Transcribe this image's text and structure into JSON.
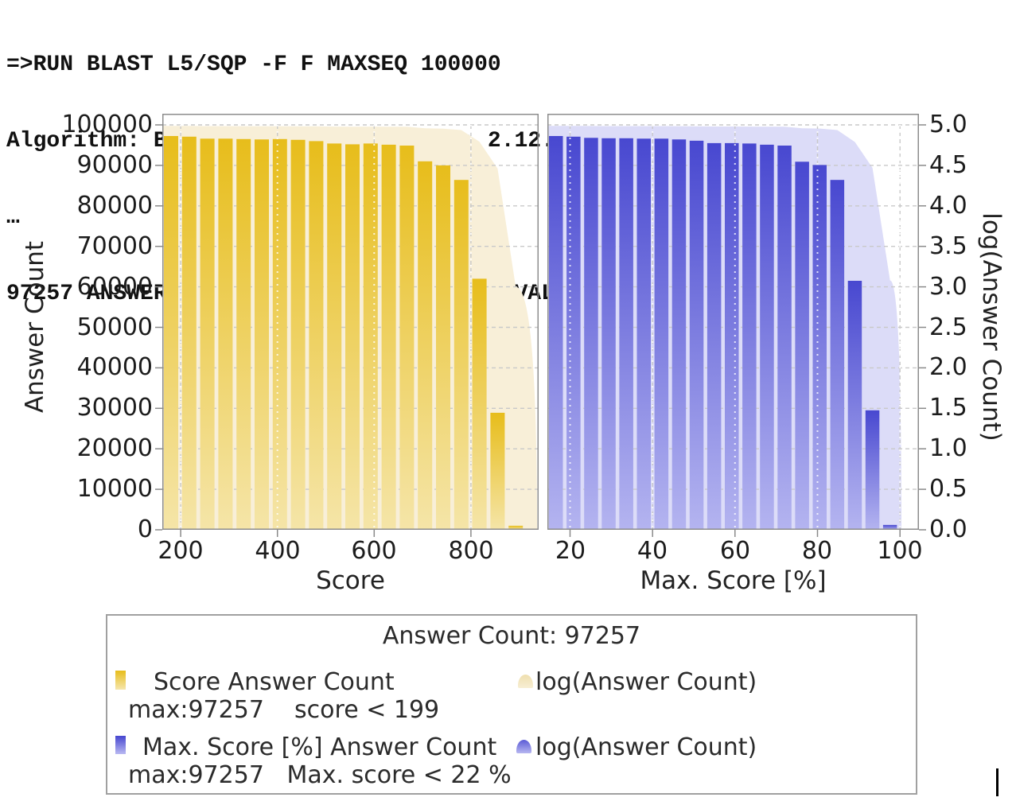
{
  "terminal": {
    "lines": [
      "=>RUN BLAST L5/SQP -F F MAXSEQ 100000",
      "Algorithm: BLAST - BLASTP. Version: 2.12.0+",
      "…",
      "97257 ANSWERS FOUND BELOW EXPECTATION VALUE OF: 10.0"
    ]
  },
  "chart_data": [
    {
      "type": "bar",
      "name": "score-answer-count-histogram",
      "title": "",
      "xlabel": "Score",
      "ylabel": "Answer Count",
      "xlim": [
        162,
        940
      ],
      "ylim": [
        0,
        100000
      ],
      "x_ticks": [
        200,
        400,
        600,
        800
      ],
      "y_ticks": [
        0,
        10000,
        20000,
        30000,
        40000,
        50000,
        60000,
        70000,
        80000,
        90000,
        100000
      ],
      "grid": true,
      "x": [
        180,
        219,
        257,
        296,
        335,
        374,
        412,
        451,
        490,
        528,
        567,
        606,
        644,
        683,
        722,
        760,
        799,
        838,
        876,
        915
      ],
      "values": [
        97257,
        97100,
        96600,
        96600,
        96500,
        96400,
        96500,
        96300,
        96000,
        95400,
        95200,
        95400,
        95100,
        94900,
        91000,
        90000,
        86400,
        62000,
        28900,
        1000
      ],
      "overlay_series": {
        "name": "log(Answer Count)",
        "style": "pale filled area",
        "axis_range": [
          0,
          5
        ],
        "note": "area height = log10(Answer Count) on secondary 0-5 axis"
      },
      "colors": {
        "bar_top": "#e7bd1b",
        "bar_bottom": "#f5e5a8",
        "area": "#f8efd8"
      }
    },
    {
      "type": "bar",
      "name": "max-score-percent-histogram",
      "title": "",
      "xlabel": "Max. Score [%]",
      "y2label": "log(Answer Count)",
      "xlim": [
        14.5,
        104.6
      ],
      "ylim": [
        0,
        100000
      ],
      "y2lim": [
        0.0,
        5.0
      ],
      "x_ticks": [
        20,
        40,
        60,
        80,
        100
      ],
      "y2_ticks": [
        "0.0",
        "0.5",
        "1.0",
        "1.5",
        "2.0",
        "2.5",
        "3.0",
        "3.5",
        "4.0",
        "4.5",
        "5.0"
      ],
      "grid": true,
      "x": [
        20,
        24.2,
        28.4,
        32.6,
        36.8,
        41,
        45.2,
        49.4,
        53.6,
        57.8,
        62,
        66.2,
        70.4,
        74.6,
        78.8,
        83,
        87.2,
        91.4,
        95.6,
        99.8
      ],
      "values": [
        97257,
        97100,
        96800,
        96700,
        96700,
        96600,
        96600,
        96400,
        96100,
        95500,
        95500,
        95400,
        95100,
        94900,
        90900,
        90100,
        86400,
        61500,
        29500,
        1200
      ],
      "overlay_series": {
        "name": "log(Answer Count)",
        "style": "pale filled area",
        "axis_range": [
          0,
          5
        ],
        "note": "area height = log10(Answer Count) on 0-5 axis"
      },
      "colors": {
        "bar_top": "#4848d0",
        "bar_bottom": "#b4b4f0",
        "area": "#dcdcf8"
      }
    }
  ],
  "legend": {
    "title": "Answer Count: 97257",
    "entries": [
      {
        "swatch": "gold-bar-swatch",
        "label": "Score Answer Count",
        "detail": "max:97257    score < 199"
      },
      {
        "swatch": "gold-area-swatch",
        "label": "log(Answer Count)"
      },
      {
        "swatch": "blue-bar-swatch",
        "label": "Max. Score [%] Answer Count",
        "detail": "max:97257   Max. score < 22 %"
      },
      {
        "swatch": "blue-area-swatch",
        "label": "log(Answer Count)"
      }
    ]
  }
}
